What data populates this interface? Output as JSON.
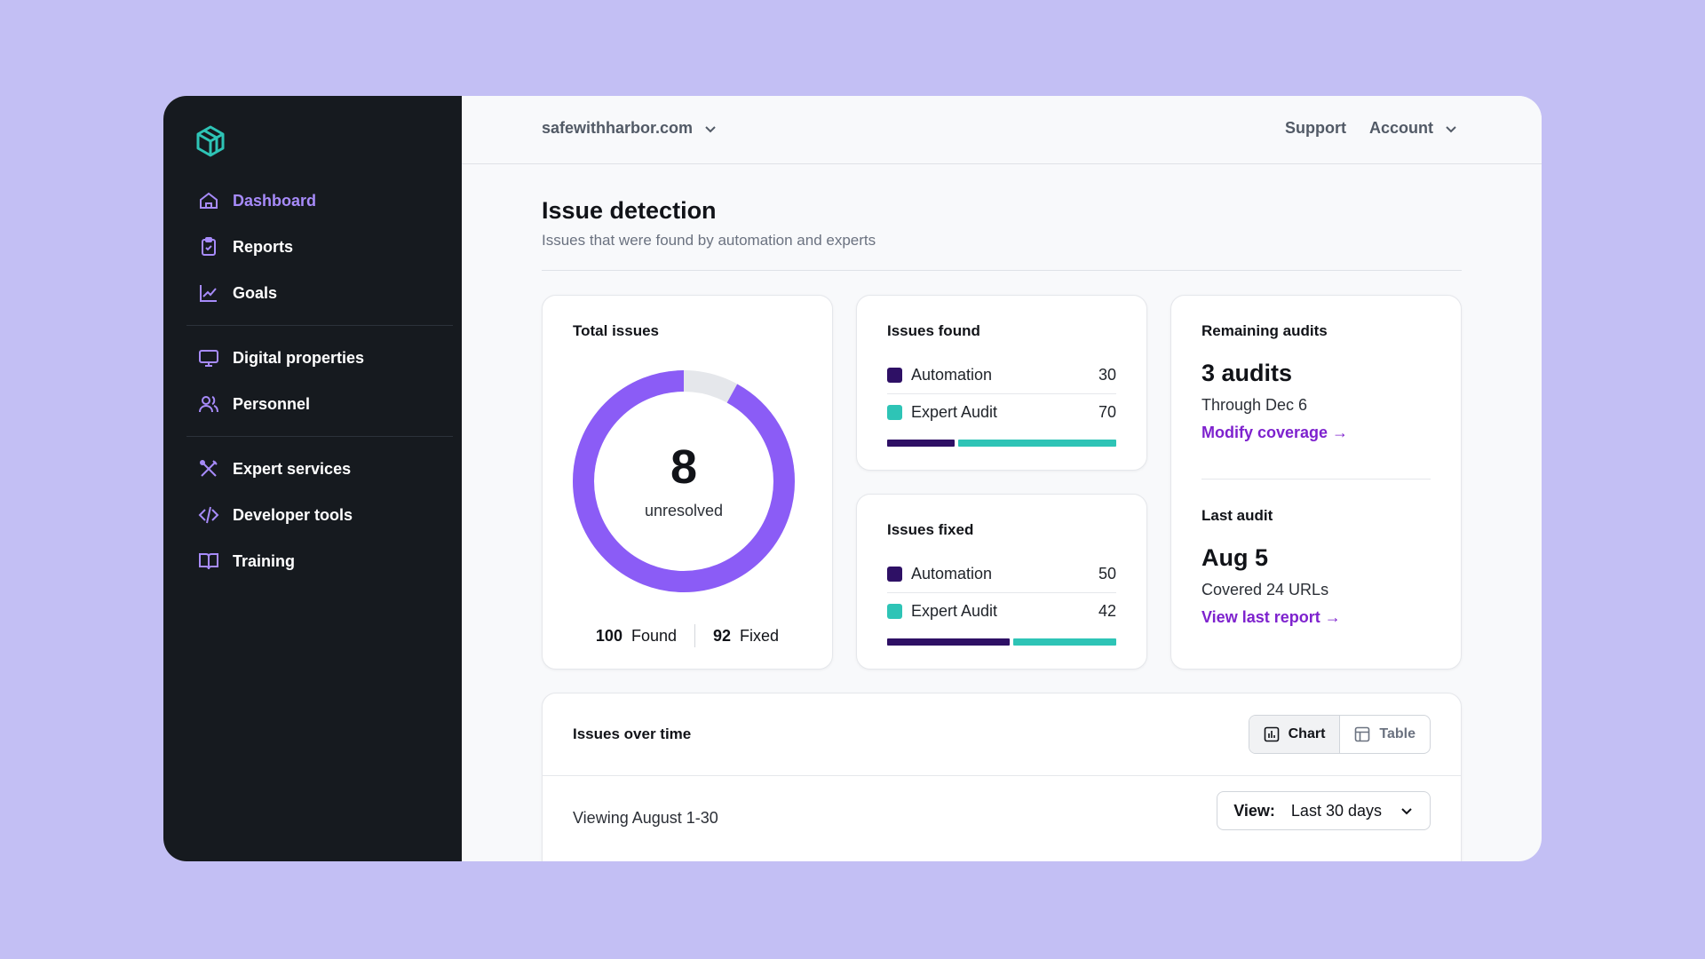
{
  "sidebar": {
    "items": [
      {
        "label": "Dashboard",
        "icon": "home-icon"
      },
      {
        "label": "Reports",
        "icon": "clipboard-check-icon"
      },
      {
        "label": "Goals",
        "icon": "trending-up-icon"
      },
      {
        "label": "Digital properties",
        "icon": "monitor-icon"
      },
      {
        "label": "Personnel",
        "icon": "users-icon"
      },
      {
        "label": "Expert services",
        "icon": "tools-icon"
      },
      {
        "label": "Developer tools",
        "icon": "code-icon"
      },
      {
        "label": "Training",
        "icon": "book-icon"
      }
    ],
    "active_item": "Dashboard"
  },
  "topbar": {
    "site": "safewithharbor.com",
    "support_label": "Support",
    "account_label": "Account"
  },
  "page": {
    "title": "Issue detection",
    "subtitle": "Issues that were found by automation and experts"
  },
  "total_issues": {
    "title": "Total issues",
    "unresolved_count": "8",
    "unresolved_label": "unresolved",
    "found_count": "100",
    "found_label": "Found",
    "fixed_count": "92",
    "fixed_label": "Fixed",
    "donut_fixed_fraction": 0.92
  },
  "issues_found": {
    "title": "Issues found",
    "rows": [
      {
        "label": "Automation",
        "value": "30",
        "color": "#2e1065"
      },
      {
        "label": "Expert Audit",
        "value": "70",
        "color": "#2ec4b6"
      }
    ]
  },
  "issues_fixed": {
    "title": "Issues fixed",
    "rows": [
      {
        "label": "Automation",
        "value": "50",
        "color": "#2e1065"
      },
      {
        "label": "Expert Audit",
        "value": "42",
        "color": "#2ec4b6"
      }
    ]
  },
  "remaining_audits": {
    "title": "Remaining audits",
    "count_label": "3 audits",
    "through_label": "Through Dec 6",
    "modify_link": "Modify coverage →"
  },
  "last_audit": {
    "title": "Last audit",
    "date": "Aug 5",
    "covered_label": "Covered 24 URLs",
    "report_link": "View last report →"
  },
  "issues_over_time": {
    "title": "Issues over time",
    "toggle": {
      "chart_label": "Chart",
      "table_label": "Table",
      "selected": "Chart"
    },
    "viewing_label": "Viewing August 1-30",
    "view_prefix": "View:",
    "view_value": "Last 30 days"
  },
  "colors": {
    "accent": "#a78bfa",
    "donut_fixed": "#8b5cf6",
    "donut_remaining": "#e5e7eb",
    "link": "#7e22ce",
    "brand_logo": "#2ec4b6"
  }
}
